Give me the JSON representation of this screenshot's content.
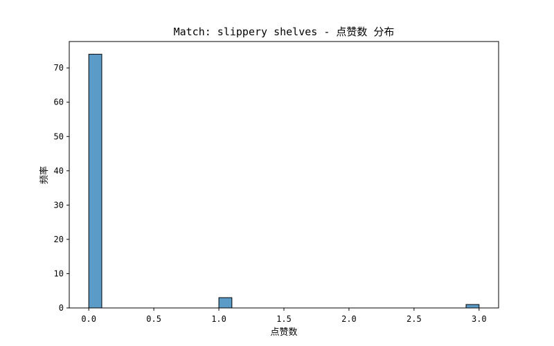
{
  "chart_data": {
    "type": "bar",
    "title": "Match: slippery shelves - 点赞数 分布",
    "xlabel": "点赞数",
    "ylabel": "频率",
    "xlim": [
      -0.15,
      3.15
    ],
    "ylim": [
      0,
      77.7
    ],
    "bin_width": 0.1,
    "x_ticks": [
      0.0,
      0.5,
      1.0,
      1.5,
      2.0,
      2.5,
      3.0
    ],
    "x_tick_labels": [
      "0.0",
      "0.5",
      "1.0",
      "1.5",
      "2.0",
      "2.5",
      "3.0"
    ],
    "y_ticks": [
      0,
      10,
      20,
      30,
      40,
      50,
      60,
      70
    ],
    "y_tick_labels": [
      "0",
      "10",
      "20",
      "30",
      "40",
      "50",
      "60",
      "70"
    ],
    "bins": [
      {
        "x": 0.0,
        "count": 74
      },
      {
        "x": 1.0,
        "count": 3
      },
      {
        "x": 2.9,
        "count": 1
      }
    ],
    "bar_color": "#5b9bc7",
    "edge_color": "#000000",
    "grid": false
  }
}
